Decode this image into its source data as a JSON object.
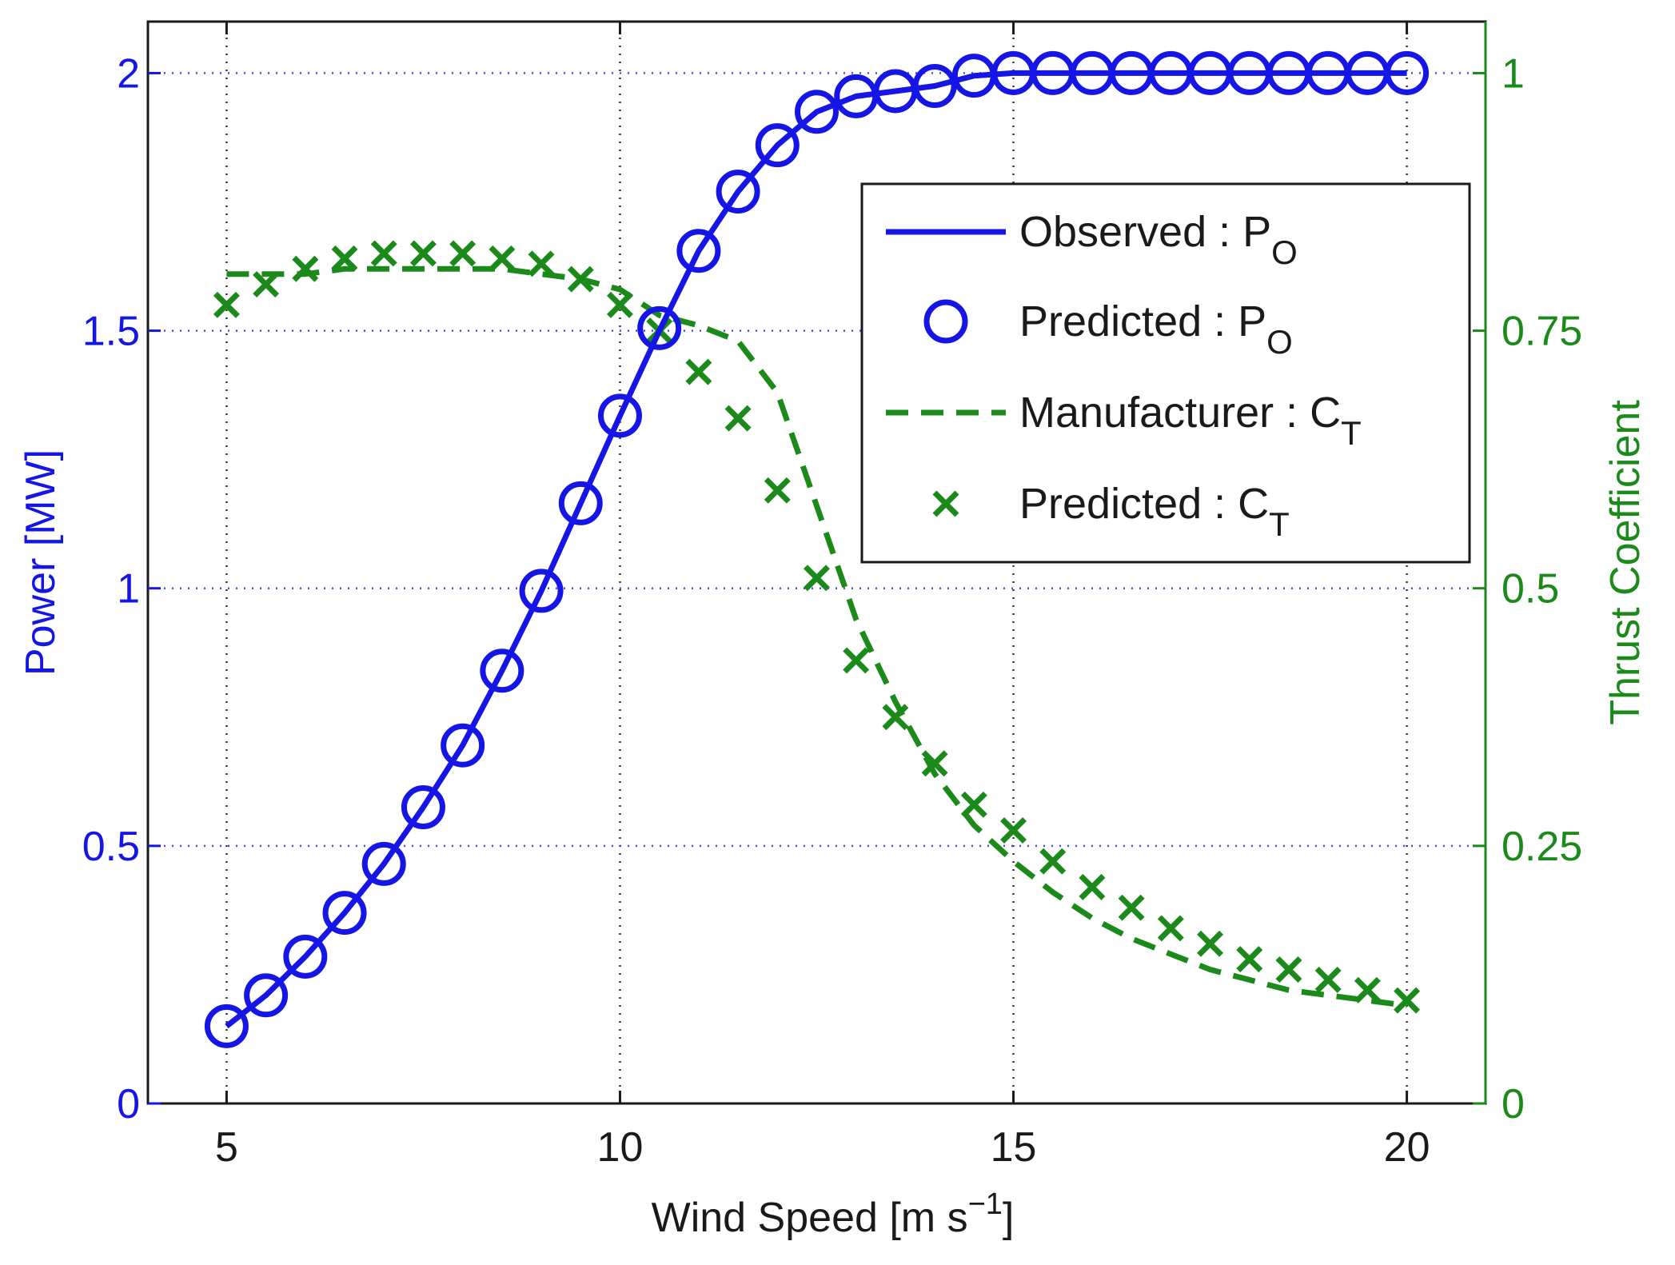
{
  "colors": {
    "power": "#1515e6",
    "thrust": "#1b8a1b",
    "axis": "#1a1a1a",
    "grid_x": "#333333",
    "grid_y": "#4a4ae8"
  },
  "chart_data": {
    "type": "line",
    "xlabel": "Wind Speed [m s",
    "xlabel_sup": "−1",
    "xlabel_end": "]",
    "ylabel_left": "Power [MW]",
    "ylabel_right": "Thrust Coefficient",
    "xlim": [
      4,
      21
    ],
    "ylim_left": [
      0,
      2.1
    ],
    "ylim_right": [
      0,
      1.05
    ],
    "grid": true,
    "legend_position": "top-right",
    "x_ticks": [
      {
        "value": 5,
        "label": "5"
      },
      {
        "value": 10,
        "label": "10"
      },
      {
        "value": 15,
        "label": "15"
      },
      {
        "value": 20,
        "label": "20"
      }
    ],
    "y_ticks_left": [
      {
        "value": 0,
        "label": "0"
      },
      {
        "value": 0.5,
        "label": "0.5"
      },
      {
        "value": 1,
        "label": "1"
      },
      {
        "value": 1.5,
        "label": "1.5"
      },
      {
        "value": 2,
        "label": "2"
      }
    ],
    "y_ticks_right": [
      {
        "value": 0,
        "label": "0"
      },
      {
        "value": 0.25,
        "label": "0.25"
      },
      {
        "value": 0.5,
        "label": "0.5"
      },
      {
        "value": 0.75,
        "label": "0.75"
      },
      {
        "value": 1,
        "label": "1"
      }
    ],
    "x": [
      5,
      5.5,
      6,
      6.5,
      7,
      7.5,
      8,
      8.5,
      9,
      9.5,
      10,
      10.5,
      11,
      11.5,
      12,
      12.5,
      13,
      13.5,
      14,
      14.5,
      15,
      15.5,
      16,
      16.5,
      17,
      17.5,
      18,
      18.5,
      19,
      19.5,
      20
    ],
    "series": [
      {
        "name": "Observed : P",
        "subscript": "O",
        "axis": "left",
        "style": "solid-line",
        "values": [
          0.15,
          0.21,
          0.285,
          0.37,
          0.465,
          0.575,
          0.695,
          0.84,
          0.995,
          1.165,
          1.335,
          1.5,
          1.655,
          1.77,
          1.86,
          1.925,
          1.955,
          1.965,
          1.975,
          1.995,
          2.0,
          2.0,
          2.0,
          2.0,
          2.0,
          2.0,
          2.0,
          2.0,
          2.0,
          2.0,
          2.0
        ]
      },
      {
        "name": "Predicted : P",
        "subscript": "O",
        "axis": "left",
        "style": "circle-markers",
        "values": [
          0.15,
          0.21,
          0.285,
          0.37,
          0.465,
          0.575,
          0.695,
          0.84,
          0.995,
          1.165,
          1.335,
          1.505,
          1.655,
          1.77,
          1.86,
          1.925,
          1.955,
          1.965,
          1.975,
          1.995,
          2.0,
          2.0,
          2.0,
          2.0,
          2.0,
          2.0,
          2.0,
          2.0,
          2.0,
          2.0,
          2.0
        ]
      },
      {
        "name": "Manufacturer : C",
        "subscript": "T",
        "axis": "right",
        "style": "dashed-line",
        "values": [
          0.805,
          0.805,
          0.805,
          0.81,
          0.81,
          0.81,
          0.81,
          0.81,
          0.805,
          0.8,
          0.79,
          0.765,
          0.755,
          0.74,
          0.69,
          0.58,
          0.47,
          0.39,
          0.32,
          0.27,
          0.235,
          0.205,
          0.18,
          0.16,
          0.145,
          0.13,
          0.12,
          0.11,
          0.105,
          0.1,
          0.095
        ]
      },
      {
        "name": "Predicted : C",
        "subscript": "T",
        "axis": "right",
        "style": "x-markers",
        "values": [
          0.775,
          0.795,
          0.81,
          0.82,
          0.825,
          0.825,
          0.825,
          0.82,
          0.815,
          0.8,
          0.775,
          0.75,
          0.71,
          0.665,
          0.595,
          0.51,
          0.43,
          0.375,
          0.33,
          0.29,
          0.265,
          0.235,
          0.21,
          0.19,
          0.17,
          0.155,
          0.14,
          0.13,
          0.12,
          0.11,
          0.1
        ]
      }
    ]
  }
}
